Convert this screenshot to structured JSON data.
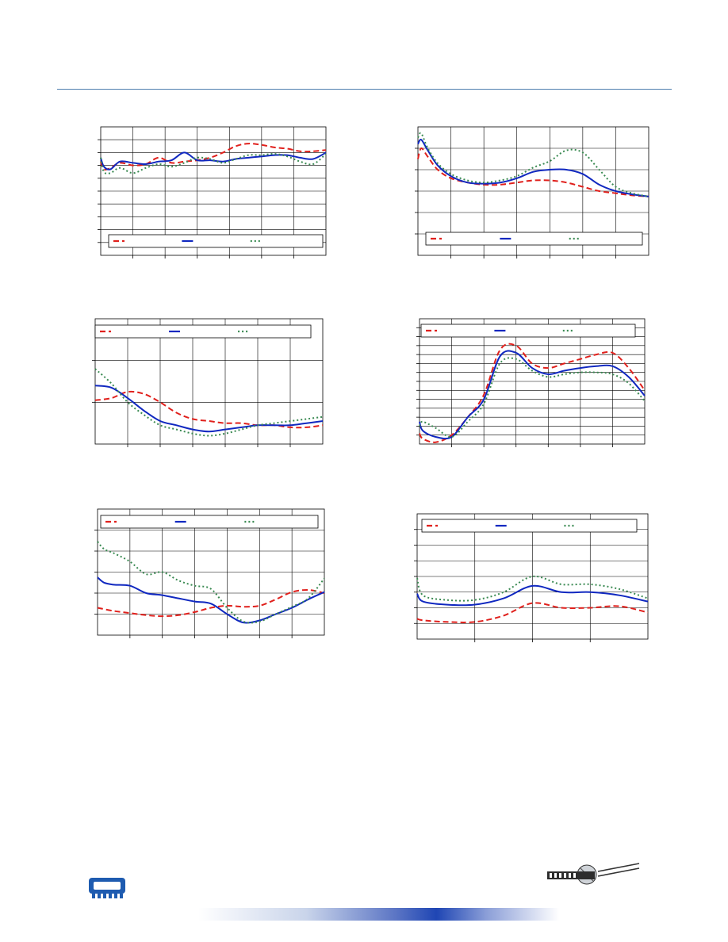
{
  "page": {
    "colors": {
      "rule": "#4f7fae",
      "axis": "#000000",
      "grid": "#000000"
    }
  },
  "chart_data": [
    {
      "type": "line",
      "xlim": [
        0,
        7
      ],
      "ylim": [
        0,
        10
      ],
      "grid": true,
      "legend": "bottom-inside",
      "series": [
        {
          "color": "#e0201c",
          "style": "dashed",
          "x": [
            0,
            0.1,
            0.3,
            0.6,
            1.0,
            1.4,
            1.8,
            2.2,
            2.6,
            3.0,
            3.4,
            3.8,
            4.2,
            4.6,
            5.0,
            5.4,
            5.8,
            6.2,
            6.6,
            7.0
          ],
          "y": [
            7.3,
            6.7,
            6.8,
            7.2,
            7.0,
            7.1,
            7.6,
            7.2,
            7.3,
            7.4,
            7.6,
            8.0,
            8.5,
            8.7,
            8.6,
            8.4,
            8.3,
            8.1,
            8.1,
            8.2
          ]
        },
        {
          "color": "#1028c0",
          "style": "solid",
          "x": [
            0,
            0.1,
            0.3,
            0.6,
            1.0,
            1.4,
            1.8,
            2.2,
            2.6,
            3.0,
            3.4,
            3.8,
            4.2,
            4.6,
            5.0,
            5.4,
            5.8,
            6.2,
            6.6,
            7.0
          ],
          "y": [
            7.6,
            6.9,
            6.7,
            7.3,
            7.2,
            7.1,
            7.3,
            7.4,
            8.0,
            7.4,
            7.4,
            7.3,
            7.5,
            7.6,
            7.7,
            7.8,
            7.8,
            7.6,
            7.5,
            8.0
          ]
        },
        {
          "color": "#3a8a52",
          "style": "dotted",
          "x": [
            0,
            0.1,
            0.3,
            0.6,
            1.0,
            1.4,
            1.8,
            2.2,
            2.6,
            3.0,
            3.4,
            3.8,
            4.2,
            4.6,
            5.0,
            5.4,
            5.8,
            6.2,
            6.6,
            7.0
          ],
          "y": [
            7.6,
            6.5,
            6.4,
            6.8,
            6.4,
            6.8,
            7.1,
            6.9,
            7.2,
            7.6,
            7.5,
            7.2,
            7.5,
            7.8,
            7.8,
            7.9,
            7.7,
            7.3,
            7.1,
            7.9
          ]
        }
      ]
    },
    {
      "type": "line",
      "xlim": [
        0,
        7
      ],
      "ylim": [
        0,
        6
      ],
      "grid": true,
      "legend": "bottom-inside",
      "series": [
        {
          "color": "#e0201c",
          "style": "dashed",
          "x": [
            0,
            0.1,
            0.3,
            0.6,
            1.0,
            1.5,
            2.0,
            2.5,
            3.0,
            3.5,
            4.0,
            4.5,
            5.0,
            5.5,
            6.0,
            6.5,
            7.0
          ],
          "y": [
            4.5,
            5.0,
            4.6,
            4.0,
            3.6,
            3.4,
            3.3,
            3.3,
            3.4,
            3.5,
            3.5,
            3.4,
            3.2,
            3.0,
            2.9,
            2.8,
            2.75
          ]
        },
        {
          "color": "#1028c0",
          "style": "solid",
          "x": [
            0,
            0.1,
            0.3,
            0.6,
            1.0,
            1.5,
            2.0,
            2.5,
            3.0,
            3.5,
            4.0,
            4.5,
            5.0,
            5.5,
            6.0,
            6.5,
            7.0
          ],
          "y": [
            5.2,
            5.4,
            4.9,
            4.2,
            3.7,
            3.4,
            3.35,
            3.4,
            3.6,
            3.9,
            4.0,
            4.0,
            3.8,
            3.3,
            3.0,
            2.85,
            2.75
          ]
        },
        {
          "color": "#3a8a52",
          "style": "dotted",
          "x": [
            0,
            0.1,
            0.3,
            0.6,
            1.0,
            1.5,
            2.0,
            2.5,
            3.0,
            3.5,
            4.0,
            4.5,
            5.0,
            5.5,
            6.0,
            6.5,
            7.0
          ],
          "y": [
            5.5,
            5.7,
            5.0,
            4.3,
            3.8,
            3.5,
            3.4,
            3.5,
            3.7,
            4.1,
            4.4,
            4.9,
            4.8,
            4.0,
            3.2,
            2.9,
            2.75
          ]
        }
      ]
    },
    {
      "type": "line",
      "xlim": [
        0,
        7
      ],
      "ylim": [
        0,
        3
      ],
      "grid": true,
      "legend": "top-inside",
      "series": [
        {
          "color": "#e0201c",
          "style": "dashed",
          "x": [
            0,
            0.5,
            1.0,
            1.5,
            2.0,
            2.5,
            3.0,
            3.5,
            4.0,
            4.5,
            5.0,
            5.5,
            6.0,
            6.5,
            7.0
          ],
          "y": [
            1.05,
            1.1,
            1.25,
            1.2,
            1.0,
            0.75,
            0.6,
            0.55,
            0.5,
            0.5,
            0.45,
            0.45,
            0.4,
            0.4,
            0.45
          ]
        },
        {
          "color": "#1028c0",
          "style": "solid",
          "x": [
            0,
            0.5,
            1.0,
            1.5,
            2.0,
            2.5,
            3.0,
            3.5,
            4.0,
            4.5,
            5.0,
            5.5,
            6.0,
            6.5,
            7.0
          ],
          "y": [
            1.4,
            1.35,
            1.1,
            0.8,
            0.55,
            0.45,
            0.35,
            0.3,
            0.35,
            0.4,
            0.45,
            0.45,
            0.45,
            0.5,
            0.55
          ]
        },
        {
          "color": "#3a8a52",
          "style": "dotted",
          "x": [
            0,
            0.5,
            1.0,
            1.5,
            2.0,
            2.5,
            3.0,
            3.5,
            4.0,
            4.5,
            5.0,
            5.5,
            6.0,
            6.5,
            7.0
          ],
          "y": [
            1.8,
            1.45,
            1.0,
            0.7,
            0.45,
            0.35,
            0.25,
            0.2,
            0.25,
            0.35,
            0.45,
            0.5,
            0.55,
            0.6,
            0.65
          ]
        }
      ]
    },
    {
      "type": "line",
      "xlim": [
        0,
        7
      ],
      "ylim": [
        0,
        14
      ],
      "grid": true,
      "legend": "top-inside",
      "series": [
        {
          "color": "#e0201c",
          "style": "dashed",
          "x": [
            0,
            0.1,
            0.5,
            1.0,
            1.5,
            2.0,
            2.5,
            3.0,
            3.5,
            4.0,
            4.5,
            5.0,
            5.5,
            6.0,
            6.5,
            7.0
          ],
          "y": [
            1.2,
            0.6,
            0.2,
            1.0,
            3.0,
            5.5,
            10.5,
            11.0,
            9.0,
            8.5,
            9.0,
            9.5,
            10.0,
            10.2,
            8.5,
            6.0
          ]
        },
        {
          "color": "#1028c0",
          "style": "solid",
          "x": [
            0,
            0.1,
            0.5,
            1.0,
            1.5,
            2.0,
            2.5,
            3.0,
            3.5,
            4.0,
            4.5,
            5.0,
            5.5,
            6.0,
            6.5,
            7.0
          ],
          "y": [
            2.5,
            1.5,
            0.8,
            0.8,
            3.0,
            5.0,
            9.8,
            10.2,
            8.5,
            7.8,
            8.2,
            8.5,
            8.7,
            8.7,
            7.5,
            5.4
          ]
        },
        {
          "color": "#3a8a52",
          "style": "dotted",
          "x": [
            0,
            0.1,
            0.5,
            1.0,
            1.5,
            2.0,
            2.5,
            3.0,
            3.5,
            4.0,
            4.5,
            5.0,
            5.5,
            6.0,
            6.5,
            7.0
          ],
          "y": [
            2.0,
            2.5,
            1.8,
            0.8,
            2.5,
            4.5,
            9.0,
            9.5,
            8.2,
            7.5,
            7.8,
            8.0,
            8.0,
            7.8,
            6.8,
            4.8
          ]
        }
      ]
    },
    {
      "type": "line",
      "xlim": [
        0,
        7
      ],
      "ylim": [
        0,
        6
      ],
      "grid": true,
      "legend": "top-inside",
      "series": [
        {
          "color": "#e0201c",
          "style": "dashed",
          "x": [
            0,
            0.5,
            1.0,
            1.5,
            2.0,
            2.5,
            3.0,
            3.5,
            4.0,
            4.5,
            5.0,
            5.5,
            6.0,
            6.5,
            7.0
          ],
          "y": [
            1.3,
            1.15,
            1.05,
            0.95,
            0.9,
            0.95,
            1.1,
            1.3,
            1.4,
            1.35,
            1.4,
            1.7,
            2.05,
            2.15,
            2.0
          ]
        },
        {
          "color": "#1028c0",
          "style": "solid",
          "x": [
            0,
            0.2,
            0.5,
            1.0,
            1.5,
            2.0,
            2.5,
            3.0,
            3.5,
            4.0,
            4.5,
            5.0,
            5.5,
            6.0,
            6.5,
            7.0
          ],
          "y": [
            2.75,
            2.5,
            2.4,
            2.35,
            2.0,
            1.9,
            1.75,
            1.6,
            1.5,
            1.0,
            0.6,
            0.7,
            1.0,
            1.3,
            1.7,
            2.05
          ]
        },
        {
          "color": "#3a8a52",
          "style": "dotted",
          "x": [
            0,
            0.2,
            0.5,
            1.0,
            1.5,
            2.0,
            2.5,
            3.0,
            3.5,
            4.0,
            4.5,
            5.0,
            5.5,
            6.0,
            6.5,
            7.0
          ],
          "y": [
            4.45,
            4.1,
            3.9,
            3.5,
            2.9,
            3.0,
            2.6,
            2.35,
            2.2,
            1.3,
            0.65,
            0.65,
            1.0,
            1.35,
            1.75,
            2.7
          ]
        }
      ]
    },
    {
      "type": "line",
      "xlim": [
        0,
        4
      ],
      "ylim": [
        0,
        8
      ],
      "grid": true,
      "legend": "top-inside",
      "series": [
        {
          "color": "#e0201c",
          "style": "dashed",
          "x": [
            0,
            0.1,
            0.5,
            1.0,
            1.5,
            2.0,
            2.5,
            3.0,
            3.5,
            4.0
          ],
          "y": [
            1.3,
            1.2,
            1.1,
            1.1,
            1.5,
            2.3,
            2.0,
            2.0,
            2.1,
            1.7
          ]
        },
        {
          "color": "#1028c0",
          "style": "solid",
          "x": [
            0,
            0.1,
            0.5,
            1.0,
            1.5,
            2.0,
            2.5,
            3.0,
            3.5,
            4.0
          ],
          "y": [
            2.9,
            2.4,
            2.2,
            2.2,
            2.6,
            3.4,
            3.0,
            3.0,
            2.8,
            2.4
          ]
        },
        {
          "color": "#3a8a52",
          "style": "dotted",
          "x": [
            0,
            0.1,
            0.5,
            1.0,
            1.5,
            2.0,
            2.5,
            3.0,
            3.5,
            4.0
          ],
          "y": [
            3.9,
            2.8,
            2.5,
            2.5,
            3.0,
            4.0,
            3.5,
            3.5,
            3.2,
            2.6
          ]
        }
      ]
    }
  ]
}
